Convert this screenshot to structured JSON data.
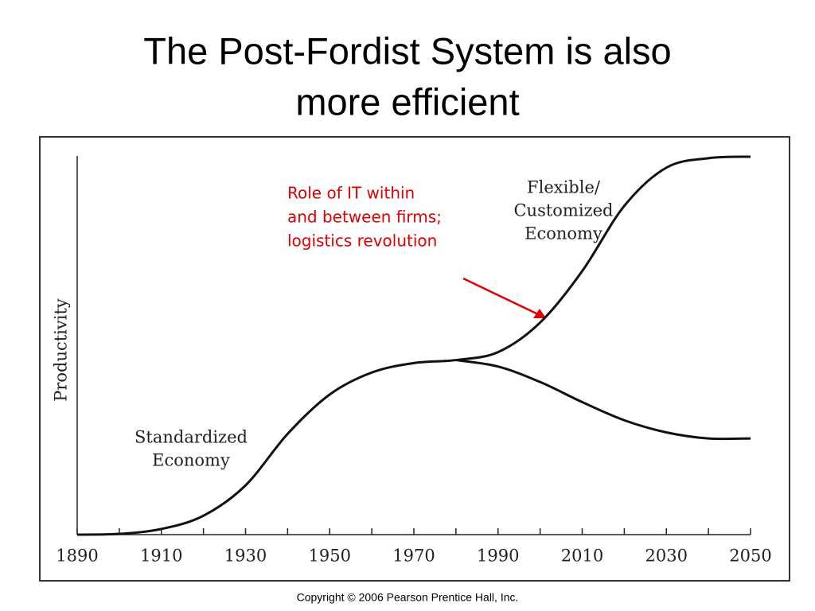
{
  "chart_data": {
    "type": "line",
    "title": [
      "The Post-Fordist System is also",
      "more efficient"
    ],
    "ylabel": "Productivity",
    "x": [
      1890,
      1900,
      1910,
      1920,
      1930,
      1940,
      1950,
      1960,
      1970,
      1980,
      1990,
      2000,
      2010,
      2020,
      2030,
      2040,
      2050
    ],
    "series": [
      {
        "color": "#111111",
        "values": [
          0,
          0.2,
          1.5,
          5,
          13,
          26.6,
          37,
          42.8,
          45.3,
          46.1,
          48.2,
          56,
          69.6,
          86.8,
          96.9,
          99.4,
          99.8
        ]
      },
      {
        "color": "#111111",
        "values": [
          null,
          null,
          null,
          null,
          null,
          null,
          null,
          null,
          null,
          46.1,
          44.4,
          40.3,
          35,
          30.2,
          27,
          25.4,
          25.4
        ]
      }
    ],
    "xlim": [
      1890,
      2050
    ],
    "xticks": [
      1890,
      1910,
      1930,
      1950,
      1970,
      1990,
      2010,
      2030,
      2050
    ],
    "xminorticks": [
      1900,
      1920,
      1940,
      1960,
      1980,
      2000,
      2020,
      2040
    ],
    "ylim": [
      0,
      100
    ],
    "annotations": [
      {
        "lines": [
          "Role of IT within",
          "and between firms;",
          "logistics revolution"
        ],
        "color": "#e00000"
      },
      {
        "lines": [
          "Flexible/",
          "Customized",
          "Economy"
        ],
        "color": "#333333"
      },
      {
        "lines": [
          "Standardized",
          "Economy"
        ],
        "color": "#333333"
      }
    ],
    "source": "Copyright © 2006 Pearson Prentice Hall, Inc."
  }
}
